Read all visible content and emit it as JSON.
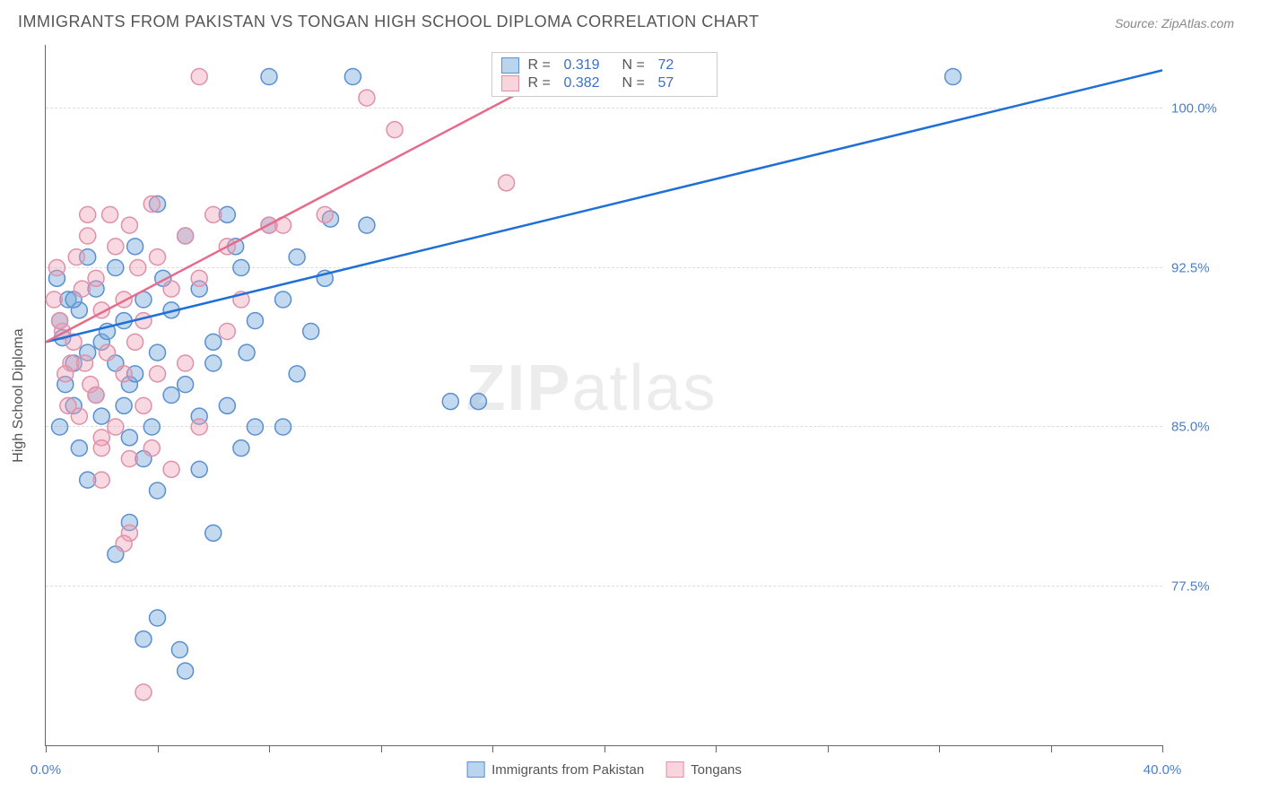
{
  "title": "IMMIGRANTS FROM PAKISTAN VS TONGAN HIGH SCHOOL DIPLOMA CORRELATION CHART",
  "source": "Source: ZipAtlas.com",
  "watermark_prefix": "ZIP",
  "watermark_suffix": "atlas",
  "y_axis_label": "High School Diploma",
  "chart": {
    "type": "scatter",
    "xlim": [
      0,
      40
    ],
    "ylim": [
      70,
      103
    ],
    "x_ticks": [
      0,
      4,
      8,
      12,
      16,
      20,
      24,
      28,
      32,
      36,
      40
    ],
    "x_tick_labels": {
      "0": "0.0%",
      "40": "40.0%"
    },
    "y_ticks": [
      77.5,
      85.0,
      92.5,
      100.0
    ],
    "y_tick_labels": [
      "77.5%",
      "85.0%",
      "92.5%",
      "100.0%"
    ],
    "background_color": "#ffffff",
    "grid_color": "#dddddd",
    "marker_radius": 9,
    "marker_stroke_width": 1.5,
    "line_width": 2.5,
    "series": [
      {
        "name": "Immigrants from Pakistan",
        "key": "pakistan",
        "fill_color": "rgba(120,170,220,0.45)",
        "stroke_color": "#5a8fd0",
        "line_color": "#1f6fd8",
        "R": "0.319",
        "N": "72",
        "regression": {
          "x1": 0,
          "y1": 89.0,
          "x2": 40,
          "y2": 101.8
        },
        "points": [
          [
            0.5,
            90.0
          ],
          [
            0.8,
            91.0
          ],
          [
            0.6,
            89.2
          ],
          [
            1.0,
            88.0
          ],
          [
            0.4,
            92.0
          ],
          [
            1.2,
            90.5
          ],
          [
            0.7,
            87.0
          ],
          [
            1.5,
            93.0
          ],
          [
            1.0,
            86.0
          ],
          [
            1.8,
            91.5
          ],
          [
            0.5,
            85.0
          ],
          [
            2.0,
            89.0
          ],
          [
            1.2,
            84.0
          ],
          [
            2.5,
            92.5
          ],
          [
            1.5,
            88.5
          ],
          [
            2.8,
            90.0
          ],
          [
            1.0,
            91.0
          ],
          [
            3.0,
            87.0
          ],
          [
            1.8,
            86.5
          ],
          [
            3.2,
            93.5
          ],
          [
            2.0,
            85.5
          ],
          [
            3.5,
            91.0
          ],
          [
            2.2,
            89.5
          ],
          [
            4.0,
            95.5
          ],
          [
            2.5,
            88.0
          ],
          [
            4.2,
            92.0
          ],
          [
            2.8,
            86.0
          ],
          [
            4.5,
            90.5
          ],
          [
            3.0,
            84.5
          ],
          [
            5.0,
            94.0
          ],
          [
            3.2,
            87.5
          ],
          [
            5.5,
            91.5
          ],
          [
            3.5,
            83.5
          ],
          [
            6.0,
            89.0
          ],
          [
            3.8,
            85.0
          ],
          [
            6.5,
            95.0
          ],
          [
            4.0,
            88.5
          ],
          [
            7.0,
            92.5
          ],
          [
            4.5,
            86.5
          ],
          [
            7.5,
            90.0
          ],
          [
            5.0,
            87.0
          ],
          [
            8.0,
            94.5
          ],
          [
            5.5,
            85.5
          ],
          [
            8.5,
            91.0
          ],
          [
            6.0,
            88.0
          ],
          [
            9.0,
            93.0
          ],
          [
            6.5,
            86.0
          ],
          [
            9.5,
            89.5
          ],
          [
            7.0,
            84.0
          ],
          [
            10.2,
            94.8
          ],
          [
            4.0,
            82.0
          ],
          [
            7.5,
            85.0
          ],
          [
            11.5,
            94.5
          ],
          [
            3.0,
            80.5
          ],
          [
            5.5,
            83.0
          ],
          [
            9.0,
            87.5
          ],
          [
            2.5,
            79.0
          ],
          [
            4.8,
            74.5
          ],
          [
            6.0,
            80.0
          ],
          [
            4.0,
            76.0
          ],
          [
            5.0,
            73.5
          ],
          [
            3.5,
            75.0
          ],
          [
            8.0,
            101.5
          ],
          [
            11.0,
            101.5
          ],
          [
            7.2,
            88.5
          ],
          [
            10.0,
            92.0
          ],
          [
            14.5,
            86.2
          ],
          [
            15.5,
            86.2
          ],
          [
            32.5,
            101.5
          ],
          [
            6.8,
            93.5
          ],
          [
            8.5,
            85.0
          ],
          [
            1.5,
            82.5
          ]
        ]
      },
      {
        "name": "Tongans",
        "key": "tongans",
        "fill_color": "rgba(240,160,180,0.40)",
        "stroke_color": "#e090a8",
        "line_color": "#e86a8a",
        "R": "0.382",
        "N": "57",
        "regression": {
          "x1": 0,
          "y1": 89.0,
          "x2": 18.5,
          "y2": 101.8
        },
        "points": [
          [
            0.3,
            91.0
          ],
          [
            0.6,
            89.5
          ],
          [
            0.4,
            92.5
          ],
          [
            0.9,
            88.0
          ],
          [
            0.5,
            90.0
          ],
          [
            1.1,
            93.0
          ],
          [
            0.7,
            87.5
          ],
          [
            1.3,
            91.5
          ],
          [
            0.8,
            86.0
          ],
          [
            1.5,
            94.0
          ],
          [
            1.0,
            89.0
          ],
          [
            1.8,
            92.0
          ],
          [
            1.2,
            85.5
          ],
          [
            2.0,
            90.5
          ],
          [
            1.4,
            88.0
          ],
          [
            2.3,
            95.0
          ],
          [
            1.6,
            87.0
          ],
          [
            2.5,
            93.5
          ],
          [
            1.8,
            86.5
          ],
          [
            2.8,
            91.0
          ],
          [
            2.0,
            84.5
          ],
          [
            3.0,
            94.5
          ],
          [
            2.2,
            88.5
          ],
          [
            3.3,
            92.5
          ],
          [
            2.5,
            85.0
          ],
          [
            3.5,
            90.0
          ],
          [
            2.8,
            87.5
          ],
          [
            3.8,
            95.5
          ],
          [
            3.0,
            83.5
          ],
          [
            4.0,
            93.0
          ],
          [
            3.2,
            89.0
          ],
          [
            4.5,
            91.5
          ],
          [
            3.5,
            86.0
          ],
          [
            5.0,
            94.0
          ],
          [
            3.8,
            84.0
          ],
          [
            5.5,
            92.0
          ],
          [
            4.0,
            87.5
          ],
          [
            6.0,
            95.0
          ],
          [
            5.5,
            101.5
          ],
          [
            6.5,
            93.5
          ],
          [
            5.0,
            88.0
          ],
          [
            7.0,
            91.0
          ],
          [
            5.5,
            85.0
          ],
          [
            8.0,
            94.5
          ],
          [
            6.5,
            89.5
          ],
          [
            10.0,
            95.0
          ],
          [
            11.5,
            100.5
          ],
          [
            12.5,
            99.0
          ],
          [
            2.0,
            82.5
          ],
          [
            3.0,
            80.0
          ],
          [
            3.5,
            72.5
          ],
          [
            2.8,
            79.5
          ],
          [
            2.0,
            84.0
          ],
          [
            4.5,
            83.0
          ],
          [
            8.5,
            94.5
          ],
          [
            16.5,
            96.5
          ],
          [
            1.5,
            95.0
          ]
        ]
      }
    ]
  },
  "legend_bottom": [
    {
      "swatch": "blue",
      "label": "Immigrants from Pakistan"
    },
    {
      "swatch": "pink",
      "label": "Tongans"
    }
  ]
}
